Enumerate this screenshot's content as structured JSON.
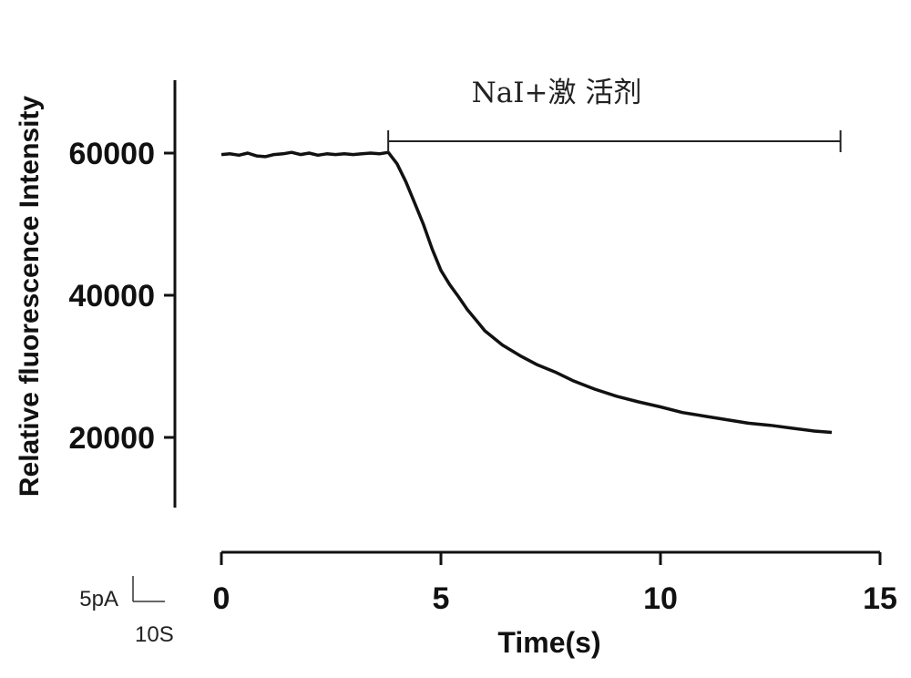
{
  "chart_data": {
    "type": "line",
    "title": "",
    "xlabel": "Time(s)",
    "ylabel": "Relative fluorescence Intensity",
    "xlim": [
      0,
      15
    ],
    "ylim": [
      10000,
      70000
    ],
    "x_ticks": [
      "0",
      "5",
      "10",
      "15"
    ],
    "x_tick_values": [
      0,
      5,
      10,
      15
    ],
    "y_ticks": [
      "20000",
      "40000",
      "60000"
    ],
    "y_tick_values": [
      20000,
      40000,
      60000
    ],
    "grid": false,
    "series": [
      {
        "color": "#111111",
        "x": [
          0,
          0.2,
          0.4,
          0.6,
          0.8,
          1.0,
          1.2,
          1.4,
          1.6,
          1.8,
          2.0,
          2.2,
          2.4,
          2.6,
          2.8,
          3.0,
          3.2,
          3.4,
          3.6,
          3.8,
          4.0,
          4.2,
          4.4,
          4.6,
          4.8,
          5.0,
          5.2,
          5.4,
          5.6,
          5.8,
          6.0,
          6.4,
          6.8,
          7.2,
          7.6,
          8.0,
          8.5,
          9.0,
          9.5,
          10.0,
          10.5,
          11.0,
          11.5,
          12.0,
          12.5,
          13.0,
          13.5,
          13.9
        ],
        "y": [
          59800,
          59900,
          59700,
          60000,
          59600,
          59500,
          59800,
          59900,
          60100,
          59800,
          60000,
          59700,
          59900,
          59800,
          59900,
          59800,
          59900,
          60000,
          59900,
          60100,
          58500,
          56000,
          53000,
          50000,
          46500,
          43500,
          41500,
          39800,
          38000,
          36500,
          35000,
          33000,
          31500,
          30200,
          29200,
          28000,
          26800,
          25800,
          25000,
          24300,
          23500,
          23000,
          22500,
          22000,
          21700,
          21300,
          20900,
          20700
        ]
      }
    ],
    "annotations": [
      {
        "text": "NaI+激 活剂",
        "x_start": 3.8,
        "x_end": 14.1,
        "y": 60000
      }
    ],
    "scale_bar": {
      "vertical_label": "5pA",
      "horizontal_label": "10S"
    }
  }
}
